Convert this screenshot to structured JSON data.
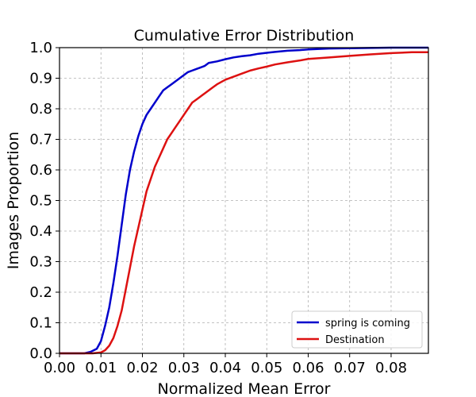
{
  "chart_data": {
    "type": "line",
    "title": "Cumulative Error Distribution",
    "xlabel": "Normalized Mean Error",
    "ylabel": "Images Proportion",
    "xlim": [
      0.0,
      0.089
    ],
    "ylim": [
      0.0,
      1.0
    ],
    "x_ticks": [
      "0.00",
      "0.01",
      "0.02",
      "0.03",
      "0.04",
      "0.05",
      "0.06",
      "0.07",
      "0.08"
    ],
    "x_tick_values": [
      0.0,
      0.01,
      0.02,
      0.03,
      0.04,
      0.05,
      0.06,
      0.07,
      0.08
    ],
    "y_ticks": [
      "0.0",
      "0.1",
      "0.2",
      "0.3",
      "0.4",
      "0.5",
      "0.6",
      "0.7",
      "0.8",
      "0.9",
      "1.0"
    ],
    "y_tick_values": [
      0.0,
      0.1,
      0.2,
      0.3,
      0.4,
      0.5,
      0.6,
      0.7,
      0.8,
      0.9,
      1.0
    ],
    "grid": true,
    "legend_position": "bottom-right",
    "series": [
      {
        "name": "spring is coming",
        "color": "#0000cc",
        "x": [
          0.0,
          0.006,
          0.0075,
          0.009,
          0.01,
          0.011,
          0.012,
          0.013,
          0.014,
          0.015,
          0.016,
          0.017,
          0.018,
          0.019,
          0.02,
          0.021,
          0.022,
          0.023,
          0.024,
          0.025,
          0.026,
          0.027,
          0.028,
          0.029,
          0.03,
          0.031,
          0.032,
          0.033,
          0.034,
          0.035,
          0.036,
          0.038,
          0.04,
          0.042,
          0.044,
          0.046,
          0.048,
          0.05,
          0.052,
          0.055,
          0.058,
          0.06,
          0.065,
          0.07,
          0.075,
          0.08,
          0.085,
          0.089
        ],
        "y": [
          0.0,
          0.0,
          0.005,
          0.015,
          0.04,
          0.09,
          0.15,
          0.23,
          0.32,
          0.42,
          0.52,
          0.6,
          0.66,
          0.71,
          0.75,
          0.78,
          0.8,
          0.82,
          0.84,
          0.86,
          0.87,
          0.88,
          0.89,
          0.9,
          0.91,
          0.92,
          0.925,
          0.93,
          0.935,
          0.94,
          0.95,
          0.955,
          0.962,
          0.968,
          0.972,
          0.975,
          0.98,
          0.983,
          0.986,
          0.99,
          0.992,
          0.994,
          0.997,
          0.998,
          0.999,
          1.0,
          1.0,
          1.0
        ]
      },
      {
        "name": "Destination",
        "color": "#dd1111",
        "x": [
          0.0,
          0.008,
          0.01,
          0.011,
          0.012,
          0.013,
          0.014,
          0.015,
          0.016,
          0.017,
          0.018,
          0.019,
          0.02,
          0.021,
          0.022,
          0.023,
          0.024,
          0.025,
          0.026,
          0.027,
          0.028,
          0.029,
          0.03,
          0.031,
          0.032,
          0.033,
          0.034,
          0.035,
          0.036,
          0.037,
          0.038,
          0.04,
          0.042,
          0.044,
          0.046,
          0.048,
          0.05,
          0.052,
          0.055,
          0.058,
          0.06,
          0.065,
          0.07,
          0.075,
          0.08,
          0.085,
          0.089
        ],
        "y": [
          0.0,
          0.0,
          0.003,
          0.01,
          0.025,
          0.05,
          0.09,
          0.14,
          0.21,
          0.28,
          0.35,
          0.41,
          0.47,
          0.53,
          0.57,
          0.61,
          0.64,
          0.67,
          0.7,
          0.72,
          0.74,
          0.76,
          0.78,
          0.8,
          0.82,
          0.83,
          0.84,
          0.85,
          0.86,
          0.87,
          0.88,
          0.895,
          0.905,
          0.915,
          0.925,
          0.932,
          0.938,
          0.945,
          0.952,
          0.958,
          0.963,
          0.968,
          0.973,
          0.978,
          0.982,
          0.985,
          0.985
        ]
      }
    ]
  }
}
